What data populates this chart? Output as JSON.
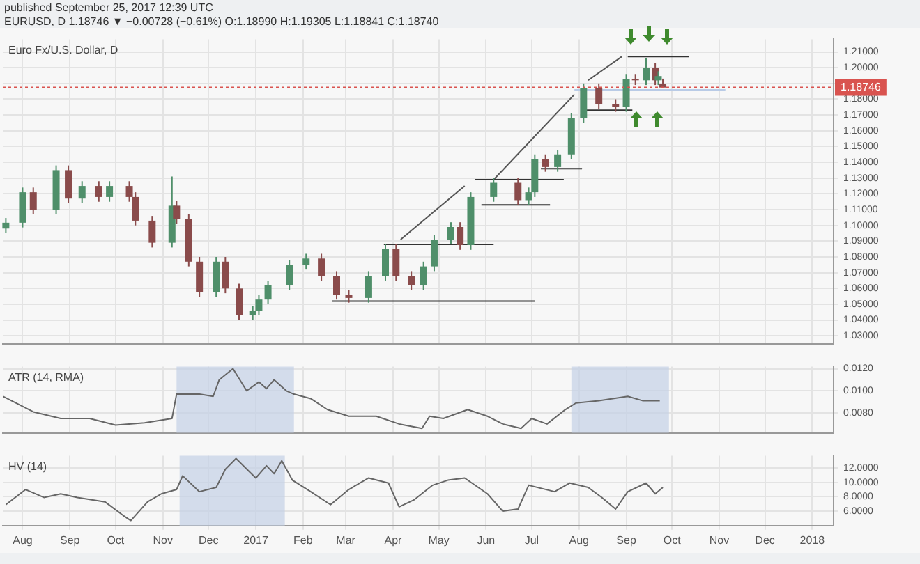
{
  "chart_data": [
    {
      "type": "candlestick",
      "title": "Euro Fx/U.S. Dollar, D",
      "annotations": [
        "published September 25, 2017 12:39 UTC",
        "EURUSD, D 1.18746 ▼ −0.00728 (−0.61%) O:1.18990 H:1.19305 L:1.18841 C:1.18740"
      ],
      "x": [
        "2016-07-21",
        "2016-08-01",
        "2016-08-08",
        "2016-08-23",
        "2016-08-31",
        "2016-09-09",
        "2016-09-20",
        "2016-09-27",
        "2016-10-10",
        "2016-10-14",
        "2016-10-25",
        "2016-11-07",
        "2016-11-10",
        "2016-11-18",
        "2016-11-25",
        "2016-12-06",
        "2016-12-12",
        "2016-12-21",
        "2016-12-30",
        "2017-01-03",
        "2017-01-09",
        "2017-01-23",
        "2017-02-03",
        "2017-02-13",
        "2017-02-23",
        "2017-03-03",
        "2017-03-16",
        "2017-03-27",
        "2017-04-03",
        "2017-04-13",
        "2017-04-21",
        "2017-04-28",
        "2017-05-09",
        "2017-05-15",
        "2017-05-22",
        "2017-06-06",
        "2017-06-22",
        "2017-06-29",
        "2017-07-03",
        "2017-07-10",
        "2017-07-18",
        "2017-07-27",
        "2017-08-04",
        "2017-08-14",
        "2017-08-25",
        "2017-09-01",
        "2017-09-07",
        "2017-09-14",
        "2017-09-20",
        "2017-09-22",
        "2017-09-25"
      ],
      "ohlc": [
        [
          1.098,
          1.1047,
          1.095,
          1.1017
        ],
        [
          1.1017,
          1.124,
          1.0987,
          1.121
        ],
        [
          1.121,
          1.124,
          1.107,
          1.11
        ],
        [
          1.11,
          1.138,
          1.107,
          1.135
        ],
        [
          1.135,
          1.138,
          1.114,
          1.117
        ],
        [
          1.117,
          1.128,
          1.114,
          1.125
        ],
        [
          1.125,
          1.128,
          1.115,
          1.118
        ],
        [
          1.118,
          1.128,
          1.115,
          1.125
        ],
        [
          1.125,
          1.128,
          1.115,
          1.118
        ],
        [
          1.118,
          1.121,
          1.1,
          1.103
        ],
        [
          1.103,
          1.106,
          1.086,
          1.089
        ],
        [
          1.089,
          1.131,
          1.086,
          1.1125
        ],
        [
          1.1125,
          1.1155,
          1.101,
          1.104
        ],
        [
          1.104,
          1.107,
          1.074,
          1.077
        ],
        [
          1.077,
          1.08,
          1.0545,
          1.0575
        ],
        [
          1.0575,
          1.08,
          1.0545,
          1.077
        ],
        [
          1.077,
          1.08,
          1.057,
          1.06
        ],
        [
          1.06,
          1.063,
          1.04,
          1.043
        ],
        [
          1.043,
          1.049,
          1.04,
          1.046
        ],
        [
          1.046,
          1.056,
          1.043,
          1.053
        ],
        [
          1.053,
          1.065,
          1.05,
          1.062
        ],
        [
          1.062,
          1.078,
          1.059,
          1.075
        ],
        [
          1.075,
          1.082,
          1.072,
          1.079
        ],
        [
          1.079,
          1.082,
          1.065,
          1.068
        ],
        [
          1.068,
          1.071,
          1.053,
          1.056
        ],
        [
          1.056,
          1.059,
          1.051,
          1.054
        ],
        [
          1.054,
          1.071,
          1.051,
          1.068
        ],
        [
          1.068,
          1.088,
          1.065,
          1.085
        ],
        [
          1.085,
          1.088,
          1.065,
          1.068
        ],
        [
          1.068,
          1.071,
          1.059,
          1.062
        ],
        [
          1.062,
          1.077,
          1.059,
          1.074
        ],
        [
          1.074,
          1.094,
          1.071,
          1.091
        ],
        [
          1.091,
          1.102,
          1.088,
          1.099
        ],
        [
          1.099,
          1.102,
          1.0845,
          1.0875
        ],
        [
          1.0875,
          1.121,
          1.0845,
          1.118
        ],
        [
          1.118,
          1.13,
          1.115,
          1.127
        ],
        [
          1.127,
          1.13,
          1.113,
          1.116
        ],
        [
          1.116,
          1.124,
          1.113,
          1.121
        ],
        [
          1.121,
          1.145,
          1.118,
          1.142
        ],
        [
          1.142,
          1.145,
          1.134,
          1.137
        ],
        [
          1.137,
          1.148,
          1.134,
          1.145
        ],
        [
          1.145,
          1.171,
          1.142,
          1.168
        ],
        [
          1.168,
          1.19,
          1.165,
          1.187
        ],
        [
          1.187,
          1.19,
          1.174,
          1.177
        ],
        [
          1.177,
          1.18,
          1.172,
          1.175
        ],
        [
          1.175,
          1.196,
          1.172,
          1.193
        ],
        [
          1.193,
          1.196,
          1.189,
          1.192
        ],
        [
          1.192,
          1.206,
          1.189,
          1.2
        ],
        [
          1.2,
          1.203,
          1.189,
          1.192
        ],
        [
          1.192,
          1.1977,
          1.189,
          1.1947
        ],
        [
          1.1899,
          1.19305,
          1.1874,
          1.1874
        ]
      ],
      "colors": [
        "#4f8f6a",
        "#4f8f6a",
        "#8a4b4b",
        "#4f8f6a",
        "#8a4b4b",
        "#4f8f6a",
        "#8a4b4b",
        "#4f8f6a",
        "#8a4b4b",
        "#8a4b4b",
        "#8a4b4b",
        "#4f8f6a",
        "#8a4b4b",
        "#8a4b4b",
        "#8a4b4b",
        "#4f8f6a",
        "#8a4b4b",
        "#8a4b4b",
        "#4f8f6a",
        "#4f8f6a",
        "#4f8f6a",
        "#4f8f6a",
        "#4f8f6a",
        "#8a4b4b",
        "#8a4b4b",
        "#8a4b4b",
        "#4f8f6a",
        "#4f8f6a",
        "#8a4b4b",
        "#8a4b4b",
        "#4f8f6a",
        "#4f8f6a",
        "#4f8f6a",
        "#8a4b4b",
        "#4f8f6a",
        "#4f8f6a",
        "#8a4b4b",
        "#4f8f6a",
        "#4f8f6a",
        "#8a4b4b",
        "#4f8f6a",
        "#4f8f6a",
        "#4f8f6a",
        "#8a4b4b",
        "#8a4b4b",
        "#4f8f6a",
        "#8a4b4b",
        "#4f8f6a",
        "#8a4b4b",
        "#4f8f6a",
        "#8a4b4b"
      ],
      "series": [
        {
          "type": "line",
          "color": "#333333",
          "x": [
            "2017-02-20",
            "2017-07-03"
          ],
          "values": [
            1.052,
            1.052
          ]
        },
        {
          "type": "line",
          "color": "#333333",
          "x": [
            "2017-03-26",
            "2017-06-06"
          ],
          "values": [
            1.088,
            1.088
          ]
        },
        {
          "type": "line",
          "color": "#333333",
          "x": [
            "2017-05-25",
            "2017-07-22"
          ],
          "values": [
            1.129,
            1.129
          ]
        },
        {
          "type": "line",
          "color": "#333333",
          "x": [
            "2017-05-29",
            "2017-07-13"
          ],
          "values": [
            1.113,
            1.113
          ]
        },
        {
          "type": "line",
          "color": "#333333",
          "x": [
            "2017-07-07",
            "2017-08-03"
          ],
          "values": [
            1.136,
            1.136
          ]
        },
        {
          "type": "line",
          "color": "#333333",
          "x": [
            "2017-08-03",
            "2017-09-05"
          ],
          "values": [
            1.173,
            1.173
          ]
        },
        {
          "type": "line",
          "color": "#333333",
          "x": [
            "2017-09-02",
            "2017-10-12"
          ],
          "values": [
            1.207,
            1.207
          ]
        },
        {
          "type": "line",
          "color": "#555555",
          "x": [
            "2017-04-06",
            "2017-05-18"
          ],
          "values": [
            1.091,
            1.125
          ]
        },
        {
          "type": "line",
          "color": "#555555",
          "x": [
            "2017-06-06",
            "2017-07-29"
          ],
          "values": [
            1.129,
            1.183
          ]
        },
        {
          "type": "line",
          "color": "#555555",
          "x": [
            "2017-08-07",
            "2017-08-29"
          ],
          "values": [
            1.192,
            1.207
          ]
        },
        {
          "type": "line",
          "color": "#b9cbe6",
          "x": [
            "2017-07-29",
            "2017-11-05"
          ],
          "values": [
            1.186,
            1.186
          ]
        }
      ],
      "ref_lines": [
        {
          "axis": "y",
          "value": 1.18746,
          "label": "1.18746",
          "color": "#d9534f"
        }
      ],
      "xlim": [
        "2016-07-19",
        "2018-01-15"
      ],
      "ylim": [
        1.025,
        1.218
      ],
      "tick_labels": "y",
      "yticks": [
        {
          "value": 1.21,
          "label": "1.21000"
        },
        {
          "value": 1.2,
          "label": "1.20000"
        },
        {
          "value": 1.19,
          "label": null
        },
        {
          "value": 1.18,
          "label": "1.18000"
        },
        {
          "value": 1.17,
          "label": "1.17000"
        },
        {
          "value": 1.16,
          "label": "1.16000"
        },
        {
          "value": 1.15,
          "label": "1.15000"
        },
        {
          "value": 1.14,
          "label": "1.14000"
        },
        {
          "value": 1.13,
          "label": "1.13000"
        },
        {
          "value": 1.12,
          "label": "1.12000"
        },
        {
          "value": 1.11,
          "label": "1.11000"
        },
        {
          "value": 1.1,
          "label": "1.10000"
        },
        {
          "value": 1.09,
          "label": "1.09000"
        },
        {
          "value": 1.08,
          "label": "1.08000"
        },
        {
          "value": 1.07,
          "label": "1.07000"
        },
        {
          "value": 1.06,
          "label": "1.06000"
        },
        {
          "value": 1.05,
          "label": "1.05000"
        },
        {
          "value": 1.04,
          "label": "1.04000"
        },
        {
          "value": 1.03,
          "label": "1.03000"
        }
      ],
      "grid": true,
      "marker": "none",
      "line_style": "solid"
    },
    {
      "type": "line",
      "title": "ATR (14, RMA)",
      "color": "#666666",
      "x": [
        "2016-07-19",
        "2016-08-08",
        "2016-08-26",
        "2016-09-14",
        "2016-10-01",
        "2016-10-20",
        "2016-11-07",
        "2016-11-10",
        "2016-11-25",
        "2016-12-04",
        "2016-12-08",
        "2016-12-17",
        "2016-12-26",
        "2017-01-03",
        "2017-01-08",
        "2017-01-13",
        "2017-01-21",
        "2017-01-26",
        "2017-02-06",
        "2017-02-17",
        "2017-03-03",
        "2017-03-21",
        "2017-04-05",
        "2017-04-20",
        "2017-04-25",
        "2017-05-04",
        "2017-05-20",
        "2017-06-02",
        "2017-06-12",
        "2017-06-24",
        "2017-07-01",
        "2017-07-11",
        "2017-07-23",
        "2017-07-30",
        "2017-08-14",
        "2017-09-02",
        "2017-09-12",
        "2017-09-23"
      ],
      "values": [
        0.0095,
        0.0081,
        0.0075,
        0.0075,
        0.0069,
        0.0071,
        0.0075,
        0.0097,
        0.0097,
        0.0095,
        0.011,
        0.012,
        0.01,
        0.0108,
        0.0102,
        0.011,
        0.01,
        0.0097,
        0.0093,
        0.0083,
        0.0077,
        0.0077,
        0.007,
        0.0066,
        0.0077,
        0.0075,
        0.0083,
        0.0077,
        0.007,
        0.0066,
        0.0075,
        0.007,
        0.0083,
        0.0089,
        0.0091,
        0.0095,
        0.0091,
        0.0091
      ],
      "bands": [
        {
          "axis": "x",
          "from": "2016-11-10",
          "to": "2017-01-26",
          "color": "#c3d0e6"
        },
        {
          "axis": "x",
          "from": "2017-07-27",
          "to": "2017-09-29",
          "color": "#c3d0e6"
        }
      ],
      "xlim": [
        "2016-07-19",
        "2018-01-15"
      ],
      "ylim": [
        0.0062,
        0.0122
      ],
      "yticks": [
        {
          "value": 0.012,
          "label": "0.0120"
        },
        {
          "value": 0.01,
          "label": "0.0100"
        },
        {
          "value": 0.008,
          "label": "0.0080"
        }
      ],
      "grid": true,
      "tick_labels": "y",
      "marker": "none",
      "line_style": "solid"
    },
    {
      "type": "line",
      "title": "HV (14)",
      "color": "#666666",
      "x": [
        "2016-07-21",
        "2016-08-03",
        "2016-08-15",
        "2016-08-26",
        "2016-09-06",
        "2016-09-24",
        "2016-10-06",
        "2016-10-11",
        "2016-10-22",
        "2016-10-31",
        "2016-11-10",
        "2016-11-14",
        "2016-11-25",
        "2016-12-06",
        "2016-12-12",
        "2016-12-19",
        "2017-01-01",
        "2017-01-08",
        "2017-01-13",
        "2017-01-18",
        "2017-01-25",
        "2017-02-06",
        "2017-02-19",
        "2017-03-03",
        "2017-03-16",
        "2017-03-29",
        "2017-04-05",
        "2017-04-15",
        "2017-04-27",
        "2017-05-07",
        "2017-05-18",
        "2017-06-02",
        "2017-06-12",
        "2017-06-22",
        "2017-06-29",
        "2017-07-16",
        "2017-07-26",
        "2017-08-07",
        "2017-08-16",
        "2017-08-25",
        "2017-09-02",
        "2017-09-14",
        "2017-09-20",
        "2017-09-25"
      ],
      "values": [
        6.9,
        9.0,
        7.9,
        8.4,
        7.9,
        7.3,
        5.4,
        4.7,
        7.3,
        8.4,
        9.0,
        10.9,
        8.7,
        9.3,
        11.8,
        13.3,
        10.6,
        12.3,
        11.2,
        13.0,
        10.3,
        8.7,
        6.9,
        9.0,
        10.6,
        9.9,
        6.6,
        7.6,
        9.6,
        10.3,
        10.6,
        8.4,
        6.0,
        6.3,
        9.6,
        8.7,
        9.9,
        9.3,
        7.9,
        6.3,
        8.7,
        9.9,
        8.4,
        9.3
      ],
      "bands": [
        {
          "axis": "x",
          "from": "2016-11-12",
          "to": "2017-01-20",
          "color": "#c3d0e6"
        }
      ],
      "xlim": [
        "2016-07-19",
        "2018-01-15"
      ],
      "xticks": [
        {
          "value": "2016-08-01",
          "label": "Aug"
        },
        {
          "value": "2016-09-01",
          "label": "Sep"
        },
        {
          "value": "2016-10-01",
          "label": "Oct"
        },
        {
          "value": "2016-11-01",
          "label": "Nov"
        },
        {
          "value": "2016-12-01",
          "label": "Dec"
        },
        {
          "value": "2017-01-01",
          "label": "2017"
        },
        {
          "value": "2017-02-01",
          "label": "Feb"
        },
        {
          "value": "2017-03-01",
          "label": "Mar"
        },
        {
          "value": "2017-04-01",
          "label": "Apr"
        },
        {
          "value": "2017-05-01",
          "label": "May"
        },
        {
          "value": "2017-06-01",
          "label": "Jun"
        },
        {
          "value": "2017-07-01",
          "label": "Jul"
        },
        {
          "value": "2017-08-01",
          "label": "Aug"
        },
        {
          "value": "2017-09-01",
          "label": "Sep"
        },
        {
          "value": "2017-10-01",
          "label": "Oct"
        },
        {
          "value": "2017-11-01",
          "label": "Nov"
        },
        {
          "value": "2017-12-01",
          "label": "Dec"
        },
        {
          "value": "2018-01-01",
          "label": "2018"
        }
      ],
      "ylim": [
        4,
        13.7
      ],
      "yticks": [
        {
          "value": 12,
          "label": "12.0000"
        },
        {
          "value": 10,
          "label": "10.0000"
        },
        {
          "value": 8,
          "label": "8.0000"
        },
        {
          "value": 6,
          "label": "6.0000"
        }
      ],
      "grid": true,
      "marker": "none",
      "line_style": "solid"
    }
  ]
}
